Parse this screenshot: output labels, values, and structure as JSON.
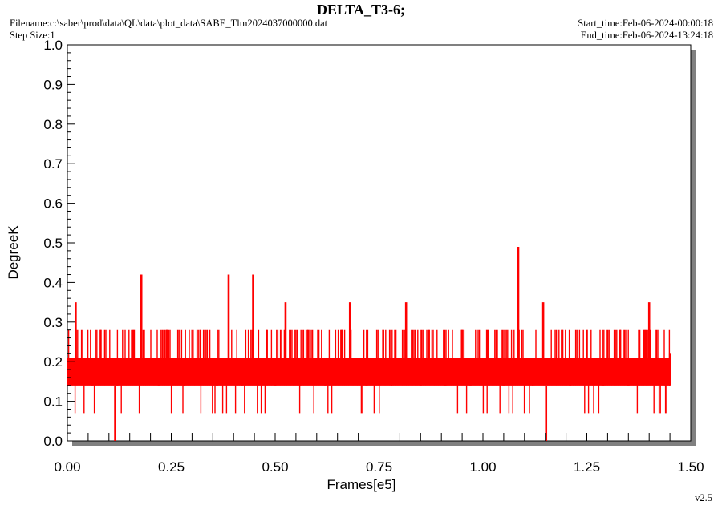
{
  "header": {
    "title": "DELTA_T3-6;",
    "filename": "Filename:c:\\saber\\prod\\data\\QL\\data\\plot_data\\SABE_Tlm2024037000000.dat",
    "step_size": "Step Size:1",
    "start_time": "Start_time:Feb-06-2024-00:00:18",
    "end_time": "End_time:Feb-06-2024-13:24:18",
    "version": "v2.5"
  },
  "colors": {
    "series": "#ff0000",
    "shadow": "#808080",
    "frame": "#000000",
    "background": "#ffffff"
  },
  "chart_data": {
    "type": "line",
    "title": "DELTA_T3-6;",
    "xlabel": "Frames[e5]",
    "ylabel": "DegreeK",
    "xlim": [
      0,
      1.5
    ],
    "ylim": [
      0,
      1.0
    ],
    "x_ticks": [
      "0.00",
      "0.25",
      "0.50",
      "0.75",
      "1.00",
      "1.25",
      "1.50"
    ],
    "y_ticks": [
      "0.0",
      "0.1",
      "0.2",
      "0.3",
      "0.4",
      "0.5",
      "0.6",
      "0.7",
      "0.8",
      "0.9",
      "1.0"
    ],
    "grid": false,
    "series": [
      {
        "x": [
          0.0,
          0.02,
          0.04,
          0.06,
          0.08,
          0.1,
          0.115,
          0.12,
          0.14,
          0.16,
          0.178,
          0.2,
          0.22,
          0.24,
          0.26,
          0.28,
          0.3,
          0.32,
          0.34,
          0.36,
          0.388,
          0.4,
          0.42,
          0.447,
          0.46,
          0.48,
          0.5,
          0.525,
          0.54,
          0.56,
          0.58,
          0.6,
          0.62,
          0.64,
          0.66,
          0.68,
          0.7,
          0.72,
          0.74,
          0.76,
          0.78,
          0.8,
          0.815,
          0.83,
          0.85,
          0.87,
          0.89,
          0.91,
          0.93,
          0.95,
          0.97,
          0.99,
          1.01,
          1.03,
          1.05,
          1.07,
          1.085,
          1.1,
          1.12,
          1.145,
          1.152,
          1.17,
          1.19,
          1.21,
          1.23,
          1.25,
          1.27,
          1.29,
          1.31,
          1.33,
          1.35,
          1.37,
          1.39,
          1.4,
          1.42,
          1.44,
          1.45
        ],
        "y": [
          0.21,
          0.35,
          0.21,
          0.14,
          0.28,
          0.21,
          0.0,
          0.14,
          0.21,
          0.28,
          0.42,
          0.21,
          0.14,
          0.28,
          0.21,
          0.14,
          0.21,
          0.28,
          0.21,
          0.14,
          0.42,
          0.21,
          0.14,
          0.42,
          0.21,
          0.28,
          0.14,
          0.35,
          0.21,
          0.14,
          0.28,
          0.21,
          0.14,
          0.21,
          0.28,
          0.35,
          0.21,
          0.14,
          0.21,
          0.28,
          0.14,
          0.21,
          0.35,
          0.21,
          0.14,
          0.28,
          0.21,
          0.14,
          0.21,
          0.28,
          0.14,
          0.21,
          0.28,
          0.21,
          0.14,
          0.21,
          0.49,
          0.21,
          0.14,
          0.35,
          0.0,
          0.21,
          0.28,
          0.14,
          0.21,
          0.28,
          0.21,
          0.14,
          0.21,
          0.28,
          0.14,
          0.21,
          0.28,
          0.35,
          0.21,
          0.14,
          0.21
        ],
        "fill_band_low": 0.14,
        "fill_band_high": 0.21,
        "upper_noise_level": 0.28,
        "lower_noise_level": 0.07
      }
    ]
  }
}
